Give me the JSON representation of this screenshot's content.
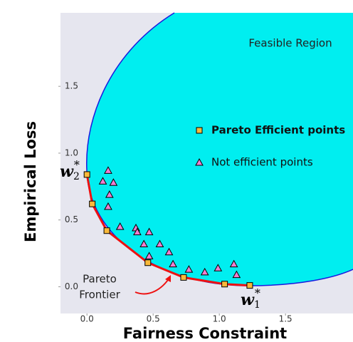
{
  "chart_data": {
    "type": "scatter",
    "xlabel": "Fairness Constraint",
    "ylabel": "Empirical Loss",
    "xlim": [
      -0.2,
      2.01
    ],
    "ylim": [
      -0.2,
      2.05
    ],
    "xticks": [
      {
        "value": 0,
        "label": "0.0"
      },
      0.5,
      {
        "value": 1,
        "label": "1.0"
      },
      1.5
    ],
    "yticks": [
      {
        "value": 0,
        "label": "0.0"
      },
      0.5,
      {
        "value": 1,
        "label": "1.0"
      },
      1.5
    ],
    "background": "#e6e6ef",
    "region_color": "#00eef0",
    "region_edge_color": "#1a1adf",
    "frontier_color": "#ee1111",
    "series": [
      {
        "name": "Pareto Efficient points",
        "color": "#f9b93a",
        "marker": "square",
        "x": [
          0.0,
          0.04,
          0.15,
          0.46,
          0.73,
          1.04,
          1.23
        ],
        "values": [
          0.84,
          0.62,
          0.42,
          0.18,
          0.07,
          0.02,
          0.01
        ]
      },
      {
        "name": "Not efficient points",
        "color": "#f07ed0",
        "marker": "triangle",
        "x": [
          0.16,
          0.12,
          0.2,
          0.17,
          0.16,
          0.25,
          0.37,
          0.38,
          0.47,
          0.43,
          0.55,
          0.47,
          0.62,
          0.65,
          0.77,
          0.89,
          0.99,
          1.11,
          1.13
        ],
        "values": [
          0.87,
          0.79,
          0.78,
          0.69,
          0.6,
          0.45,
          0.44,
          0.41,
          0.41,
          0.32,
          0.32,
          0.23,
          0.26,
          0.17,
          0.13,
          0.11,
          0.14,
          0.17,
          0.09
        ]
      }
    ],
    "annotations": {
      "region": "Feasible  Region",
      "frontier_1": "Pareto",
      "frontier_2": "Frontier",
      "w2": {
        "base": "w",
        "sub": "2",
        "sup": "*"
      },
      "w1": {
        "base": "w",
        "sub": "1",
        "sup": "*"
      }
    }
  }
}
